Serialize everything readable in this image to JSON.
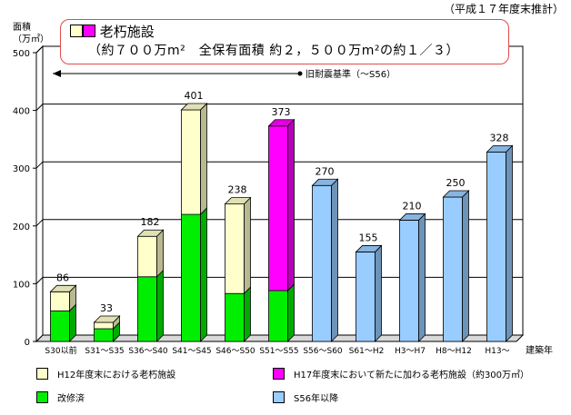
{
  "header": {
    "note": "（平成１７年度末推計）"
  },
  "annotation": {
    "title": "老朽施設",
    "detail": "（約７００万m²　全保有面積 約２，５００万m²の約１／３）",
    "title_swatch_colors": [
      "#ffffcc",
      "#ff00ff"
    ]
  },
  "arrow_label": "旧耐震基準（～S56）",
  "chart_data": {
    "type": "bar",
    "stacked": true,
    "ylabel": "面積\n（万㎡）",
    "xlabel": "建築年",
    "ylim": [
      0,
      500
    ],
    "yticks": [
      0,
      100,
      200,
      300,
      400,
      500
    ],
    "grid": true,
    "categories": [
      "S30以前",
      "S31～S35",
      "S36～S40",
      "S41～S45",
      "S46～S50",
      "S51～S55",
      "S56～S60",
      "S61～H2",
      "H3～H7",
      "H8～H12",
      "H13～"
    ],
    "totals": [
      86,
      33,
      182,
      401,
      238,
      373,
      270,
      155,
      210,
      250,
      328
    ],
    "series": [
      {
        "name": "改修済",
        "color": "#00ee00",
        "values": [
          53,
          22,
          112,
          220,
          83,
          88,
          0,
          0,
          0,
          0,
          0
        ]
      },
      {
        "name": "H12年度末における老朽施設",
        "color": "#ffffcc",
        "values": [
          33,
          11,
          70,
          181,
          155,
          0,
          0,
          0,
          0,
          0,
          0
        ]
      },
      {
        "name": "H17年度末において新たに加わる老朽施設（約300万㎡）",
        "color": "#ff00ff",
        "values": [
          0,
          0,
          0,
          0,
          0,
          285,
          0,
          0,
          0,
          0,
          0
        ]
      },
      {
        "name": "S56年以降",
        "color": "#99ccff",
        "values": [
          0,
          0,
          0,
          0,
          0,
          0,
          270,
          155,
          210,
          250,
          328
        ]
      }
    ]
  }
}
